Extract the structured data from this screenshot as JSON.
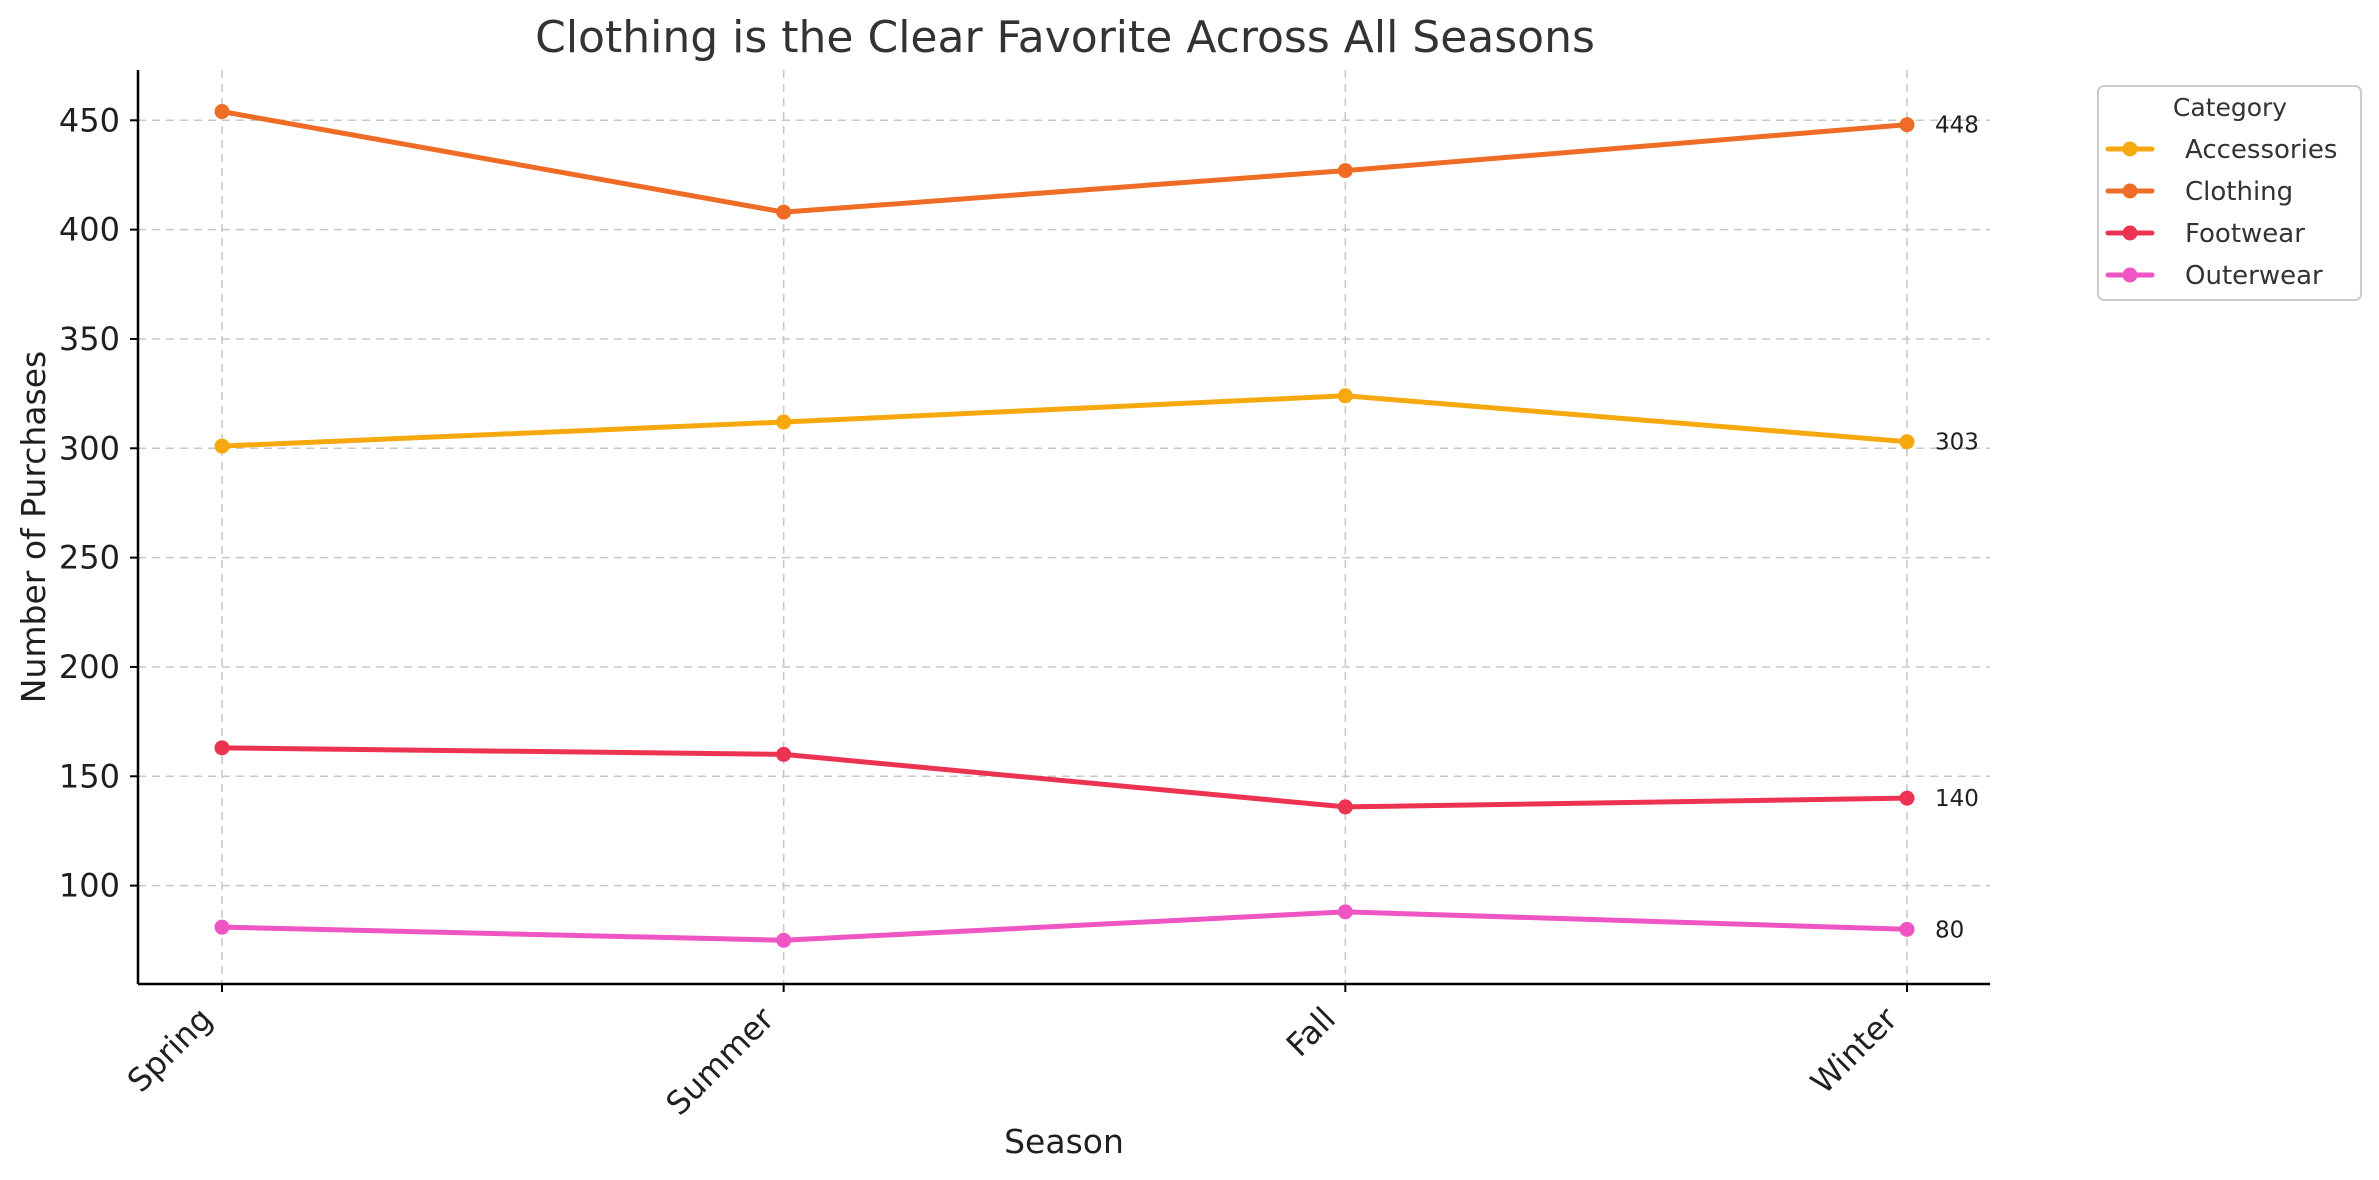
{
  "chart_data": {
    "type": "line",
    "title": "Clothing is the Clear Favorite Across All Seasons",
    "xlabel": "Season",
    "ylabel": "Number of Purchases",
    "categories": [
      "Spring",
      "Summer",
      "Fall",
      "Winter"
    ],
    "ylim": [
      55,
      473
    ],
    "yticks": [
      100,
      150,
      200,
      250,
      300,
      350,
      400,
      450
    ],
    "grid": true,
    "legend": {
      "title": "Category",
      "placement": "outside-top-right"
    },
    "series": [
      {
        "name": "Accessories",
        "color": "#f6a90f",
        "values": [
          301,
          312,
          324,
          303
        ],
        "end_label": "303"
      },
      {
        "name": "Clothing",
        "color": "#ee6c26",
        "values": [
          454,
          408,
          427,
          448
        ],
        "end_label": "448"
      },
      {
        "name": "Footwear",
        "color": "#ed3352",
        "values": [
          163,
          160,
          136,
          140
        ],
        "end_label": "140"
      },
      {
        "name": "Outerwear",
        "color": "#ef55c3",
        "values": [
          81,
          75,
          88,
          80
        ],
        "end_label": "80"
      }
    ]
  }
}
